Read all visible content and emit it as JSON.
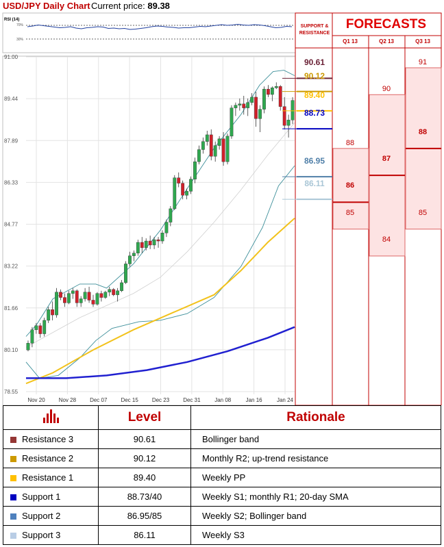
{
  "header": {
    "title": "USD/JPY Daily Chart",
    "price_label": "Current price:",
    "price_value": "89.38"
  },
  "rsi": {
    "label": "RSI (14)",
    "ticks": [
      "70%",
      "30%"
    ]
  },
  "chart_data": {
    "type": "candlestick",
    "title": "USD/JPY Daily Chart",
    "y_ticks": [
      "91.00",
      "89.44",
      "87.89",
      "86.33",
      "84.77",
      "83.22",
      "81.66",
      "80.10",
      "78.55"
    ],
    "ylim": [
      78.55,
      91.0
    ],
    "x_ticks": [
      "Nov 20",
      "Nov 28",
      "Dec 07",
      "Dec 15",
      "Dec 23",
      "Dec 31",
      "Jan 08",
      "Jan 16",
      "Jan 24"
    ],
    "candles": [
      [
        80.1,
        80.45,
        80.05,
        80.35
      ],
      [
        80.35,
        80.95,
        80.2,
        80.85
      ],
      [
        80.85,
        81.1,
        80.7,
        81.0
      ],
      [
        81.0,
        81.1,
        80.55,
        80.7
      ],
      [
        80.7,
        81.3,
        80.6,
        81.2
      ],
      [
        81.2,
        81.7,
        81.1,
        81.6
      ],
      [
        81.6,
        81.9,
        81.2,
        81.4
      ],
      [
        81.4,
        82.4,
        81.3,
        82.25
      ],
      [
        82.25,
        82.35,
        81.95,
        82.05
      ],
      [
        82.05,
        82.2,
        81.7,
        81.85
      ],
      [
        81.85,
        82.3,
        81.8,
        82.2
      ],
      [
        82.2,
        82.4,
        82.0,
        82.3
      ],
      [
        82.3,
        82.35,
        81.7,
        81.85
      ],
      [
        81.85,
        82.1,
        81.7,
        82.0
      ],
      [
        82.0,
        82.4,
        81.9,
        82.25
      ],
      [
        82.25,
        82.45,
        81.85,
        81.95
      ],
      [
        81.95,
        82.15,
        81.7,
        81.8
      ],
      [
        81.8,
        82.25,
        81.75,
        82.2
      ],
      [
        82.2,
        82.3,
        81.9,
        82.05
      ],
      [
        82.05,
        82.3,
        82.0,
        82.25
      ],
      [
        82.25,
        82.45,
        82.1,
        82.35
      ],
      [
        82.35,
        82.4,
        82.1,
        82.15
      ],
      [
        82.15,
        82.4,
        81.9,
        82.3
      ],
      [
        82.3,
        82.7,
        82.25,
        82.6
      ],
      [
        82.6,
        83.4,
        82.55,
        83.3
      ],
      [
        83.3,
        83.75,
        83.2,
        83.6
      ],
      [
        83.6,
        83.8,
        83.4,
        83.7
      ],
      [
        83.7,
        84.2,
        83.6,
        84.1
      ],
      [
        84.1,
        84.3,
        83.7,
        83.9
      ],
      [
        83.9,
        84.25,
        83.8,
        84.15
      ],
      [
        84.15,
        84.35,
        83.85,
        84.0
      ],
      [
        84.0,
        84.3,
        83.85,
        84.2
      ],
      [
        84.2,
        84.3,
        83.9,
        84.15
      ],
      [
        84.15,
        84.55,
        84.05,
        84.45
      ],
      [
        84.45,
        84.95,
        84.3,
        84.85
      ],
      [
        84.85,
        85.45,
        84.7,
        85.35
      ],
      [
        85.35,
        86.6,
        85.3,
        86.5
      ],
      [
        86.5,
        86.7,
        86.15,
        86.3
      ],
      [
        86.3,
        86.4,
        85.7,
        85.85
      ],
      [
        85.85,
        86.1,
        85.7,
        86.0
      ],
      [
        86.0,
        86.55,
        85.9,
        86.45
      ],
      [
        86.45,
        87.25,
        86.3,
        87.1
      ],
      [
        87.1,
        87.7,
        87.0,
        87.55
      ],
      [
        87.55,
        88.0,
        87.4,
        87.85
      ],
      [
        87.85,
        88.25,
        87.7,
        88.1
      ],
      [
        88.1,
        88.3,
        87.15,
        87.3
      ],
      [
        87.3,
        87.85,
        87.1,
        87.7
      ],
      [
        87.7,
        88.05,
        87.55,
        87.95
      ],
      [
        87.95,
        88.2,
        86.95,
        87.1
      ],
      [
        87.1,
        88.15,
        87.0,
        88.05
      ],
      [
        88.05,
        89.2,
        87.95,
        89.1
      ],
      [
        89.1,
        89.3,
        88.8,
        89.2
      ],
      [
        89.2,
        89.45,
        89.0,
        89.25
      ],
      [
        89.25,
        89.55,
        88.85,
        89.1
      ],
      [
        89.1,
        89.45,
        88.8,
        89.3
      ],
      [
        89.3,
        89.65,
        89.2,
        89.5
      ],
      [
        89.5,
        89.7,
        88.4,
        88.7
      ],
      [
        88.7,
        89.2,
        88.2,
        89.05
      ],
      [
        89.05,
        89.9,
        88.9,
        89.8
      ],
      [
        89.8,
        89.95,
        89.5,
        89.6
      ],
      [
        89.6,
        89.9,
        89.35,
        89.85
      ],
      [
        89.85,
        90.05,
        89.8,
        89.9
      ],
      [
        89.9,
        89.95,
        89.0,
        89.15
      ],
      [
        89.15,
        89.5,
        88.3,
        88.45
      ],
      [
        88.45,
        88.85,
        88.0,
        88.65
      ],
      [
        88.65,
        89.5,
        88.5,
        89.38
      ]
    ],
    "sma200": [
      [
        0,
        79.05
      ],
      [
        0.15,
        79.05
      ],
      [
        0.3,
        79.15
      ],
      [
        0.45,
        79.35
      ],
      [
        0.6,
        79.65
      ],
      [
        0.75,
        80.05
      ],
      [
        0.9,
        80.55
      ],
      [
        1,
        80.95
      ]
    ],
    "sma_yellow": [
      [
        0,
        78.85
      ],
      [
        0.1,
        79.25
      ],
      [
        0.25,
        80.1
      ],
      [
        0.4,
        80.85
      ],
      [
        0.55,
        81.5
      ],
      [
        0.7,
        82.15
      ],
      [
        0.8,
        83.05
      ],
      [
        0.9,
        84.1
      ],
      [
        1,
        85.0
      ]
    ],
    "bb_upper": [
      [
        0,
        80.6
      ],
      [
        0.04,
        81.05
      ],
      [
        0.1,
        82.0
      ],
      [
        0.2,
        82.55
      ],
      [
        0.26,
        82.55
      ],
      [
        0.3,
        82.4
      ],
      [
        0.4,
        83.3
      ],
      [
        0.5,
        84.55
      ],
      [
        0.6,
        86.1
      ],
      [
        0.7,
        87.6
      ],
      [
        0.8,
        88.85
      ],
      [
        0.87,
        89.95
      ],
      [
        0.92,
        90.45
      ],
      [
        0.96,
        90.5
      ],
      [
        1,
        90.3
      ]
    ],
    "bb_lower": [
      [
        0,
        79.65
      ],
      [
        0.05,
        79.05
      ],
      [
        0.12,
        79.15
      ],
      [
        0.2,
        79.8
      ],
      [
        0.26,
        80.45
      ],
      [
        0.32,
        80.9
      ],
      [
        0.42,
        81.15
      ],
      [
        0.5,
        81.2
      ],
      [
        0.6,
        81.45
      ],
      [
        0.7,
        82.05
      ],
      [
        0.8,
        83.2
      ],
      [
        0.88,
        84.65
      ],
      [
        0.94,
        86.2
      ],
      [
        1,
        86.95
      ]
    ],
    "bb_mid": [
      [
        0,
        80.2
      ],
      [
        0.1,
        80.75
      ],
      [
        0.2,
        81.3
      ],
      [
        0.3,
        81.75
      ],
      [
        0.4,
        82.2
      ],
      [
        0.5,
        82.8
      ],
      [
        0.6,
        83.75
      ],
      [
        0.7,
        84.85
      ],
      [
        0.8,
        86.05
      ],
      [
        0.9,
        87.35
      ],
      [
        1,
        88.55
      ]
    ],
    "rsi_values": [
      66,
      68,
      71,
      69,
      67,
      65,
      63,
      64,
      66,
      62,
      60,
      63,
      64,
      66,
      65,
      61,
      62,
      60,
      61,
      58,
      59,
      61,
      63,
      66,
      68,
      67,
      65,
      64,
      62,
      63,
      63,
      65,
      67,
      66,
      68,
      70,
      72,
      70,
      71,
      73,
      71,
      70,
      72,
      71,
      69,
      66,
      63,
      64,
      67,
      66
    ]
  },
  "levels_panel": {
    "title": "SUPPORT & RESISTANCE",
    "levels": [
      {
        "value": "90.61",
        "price": 90.61,
        "color": "#6a2135"
      },
      {
        "value": "90.12",
        "price": 90.12,
        "color": "#cc9900"
      },
      {
        "value": "89.40",
        "price": 89.4,
        "color": "#ffc000"
      },
      {
        "value": "88.73",
        "price": 88.73,
        "color": "#0000c0"
      },
      {
        "value": "86.95",
        "price": 86.95,
        "color": "#4f7fa8"
      },
      {
        "value": "86.11",
        "price": 86.11,
        "color": "#a9c6d6"
      }
    ]
  },
  "forecasts": {
    "title": "FORECASTS",
    "quarters": [
      {
        "label": "Q1 13",
        "high": "88",
        "mid": "86",
        "low": "85",
        "high_v": 88,
        "mid_v": 86,
        "low_v": 85
      },
      {
        "label": "Q2 13",
        "high": "90",
        "mid": "87",
        "low": "84",
        "high_v": 90,
        "mid_v": 87,
        "low_v": 84
      },
      {
        "label": "Q3 13",
        "high": "91",
        "mid": "88",
        "low": "85",
        "high_v": 91,
        "mid_v": 88,
        "low_v": 85
      }
    ]
  },
  "table": {
    "col_level": "Level",
    "col_rationale": "Rationale",
    "rows": [
      {
        "name": "Resistance 3",
        "level": "90.61",
        "rationale": "Bollinger band",
        "color": "#953735"
      },
      {
        "name": "Resistance 2",
        "level": "90.12",
        "rationale": "Monthly R2; up-trend resistance",
        "color": "#cc9900"
      },
      {
        "name": "Resistance 1",
        "level": "89.40",
        "rationale": "Weekly PP",
        "color": "#ffc000"
      },
      {
        "name": "Support 1",
        "level": "88.73/40",
        "rationale": "Weekly S1; monthly R1; 20-day SMA",
        "color": "#0000c0"
      },
      {
        "name": "Support 2",
        "level": "86.95/85",
        "rationale": "Weekly S2; Bollinger band",
        "color": "#4f81bd"
      },
      {
        "name": "Support 3",
        "level": "86.11",
        "rationale": "Weekly S3",
        "color": "#b9cde5"
      }
    ]
  }
}
